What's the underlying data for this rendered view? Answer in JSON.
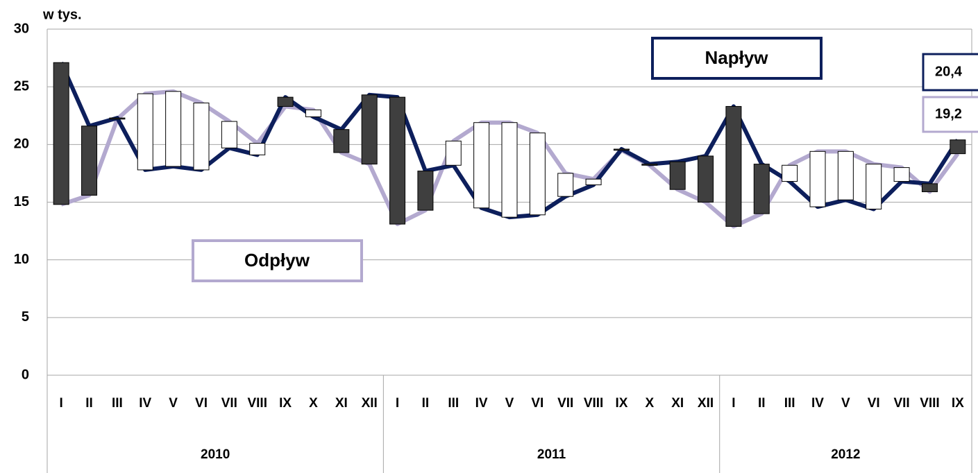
{
  "chart_data": {
    "type": "line",
    "y_unit_label": "w tys.",
    "categories": [
      "I",
      "II",
      "III",
      "IV",
      "V",
      "VI",
      "VII",
      "VIII",
      "IX",
      "X",
      "XI",
      "XII",
      "I",
      "II",
      "III",
      "IV",
      "V",
      "VI",
      "VII",
      "VIII",
      "IX",
      "X",
      "XI",
      "XII",
      "I",
      "II",
      "III",
      "IV",
      "V",
      "VI",
      "VII",
      "VIII",
      "IX"
    ],
    "category_groups": [
      {
        "label": "2010",
        "size": 12
      },
      {
        "label": "2011",
        "size": 12
      },
      {
        "label": "2012",
        "size": 9
      }
    ],
    "series": [
      {
        "name": "Napływ",
        "color": "#0d1f5c",
        "values": [
          27.1,
          21.6,
          22.3,
          17.8,
          18.1,
          17.8,
          19.7,
          19.1,
          24.1,
          22.4,
          21.3,
          24.3,
          24.1,
          17.7,
          18.2,
          14.5,
          13.7,
          13.9,
          15.5,
          16.5,
          19.6,
          18.3,
          18.5,
          19.0,
          23.3,
          18.3,
          16.8,
          14.6,
          15.2,
          14.4,
          16.8,
          16.6,
          20.4
        ],
        "value_labels": [
          null,
          null,
          null,
          null,
          null,
          null,
          null,
          null,
          null,
          null,
          null,
          null,
          null,
          null,
          null,
          null,
          null,
          null,
          null,
          null,
          null,
          null,
          null,
          null,
          null,
          null,
          null,
          null,
          null,
          null,
          null,
          null,
          "20,4"
        ]
      },
      {
        "name": "Odpływ",
        "color": "#b3a9cf",
        "values": [
          14.8,
          15.6,
          22.2,
          24.4,
          24.6,
          23.6,
          22.0,
          20.1,
          23.3,
          23.0,
          19.3,
          18.3,
          13.1,
          14.3,
          20.3,
          21.9,
          21.9,
          21.0,
          17.5,
          17.0,
          19.5,
          18.2,
          16.1,
          15.0,
          12.9,
          14.0,
          18.2,
          19.4,
          19.4,
          18.3,
          18.0,
          15.9,
          19.2
        ],
        "value_labels": [
          null,
          null,
          null,
          null,
          null,
          null,
          null,
          null,
          null,
          null,
          null,
          null,
          null,
          null,
          null,
          null,
          null,
          null,
          null,
          null,
          null,
          null,
          null,
          null,
          null,
          null,
          null,
          null,
          null,
          null,
          null,
          null,
          "19,2"
        ]
      }
    ],
    "ylim": [
      0,
      30
    ],
    "yticks": [
      0,
      5,
      10,
      15,
      20,
      25,
      30
    ],
    "grid": true,
    "up_color": "#3f3f3f",
    "down_color": "#ffffff"
  }
}
